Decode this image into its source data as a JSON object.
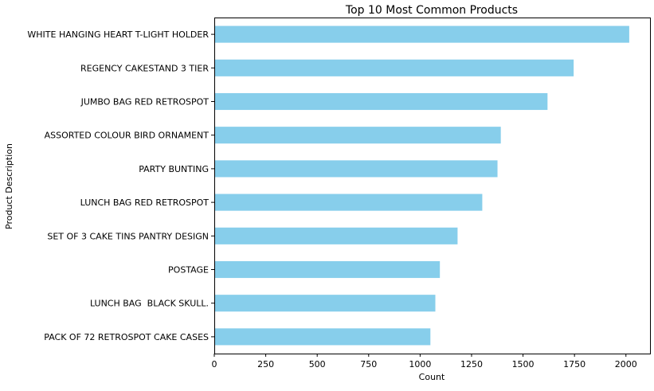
{
  "chart_data": {
    "type": "bar",
    "orientation": "horizontal",
    "title": "Top 10 Most Common Products",
    "xlabel": "Count",
    "ylabel": "Product Description",
    "categories": [
      "WHITE HANGING HEART T-LIGHT HOLDER",
      "REGENCY CAKESTAND 3 TIER",
      "JUMBO BAG RED RETROSPOT",
      "ASSORTED COLOUR BIRD ORNAMENT",
      "PARTY BUNTING",
      "LUNCH BAG RED RETROSPOT",
      "SET OF 3 CAKE TINS PANTRY DESIGN",
      "POSTAGE",
      "LUNCH BAG  BLACK SKULL.",
      "PACK OF 72 RETROSPOT CAKE CASES"
    ],
    "values": [
      2016,
      1746,
      1619,
      1392,
      1376,
      1302,
      1182,
      1096,
      1074,
      1050
    ],
    "xticks": [
      0,
      250,
      500,
      750,
      1000,
      1250,
      1500,
      1750,
      2000
    ],
    "xlim": [
      0,
      2117
    ],
    "bar_color": "#87ceeb",
    "grid": false,
    "legend": "none"
  }
}
